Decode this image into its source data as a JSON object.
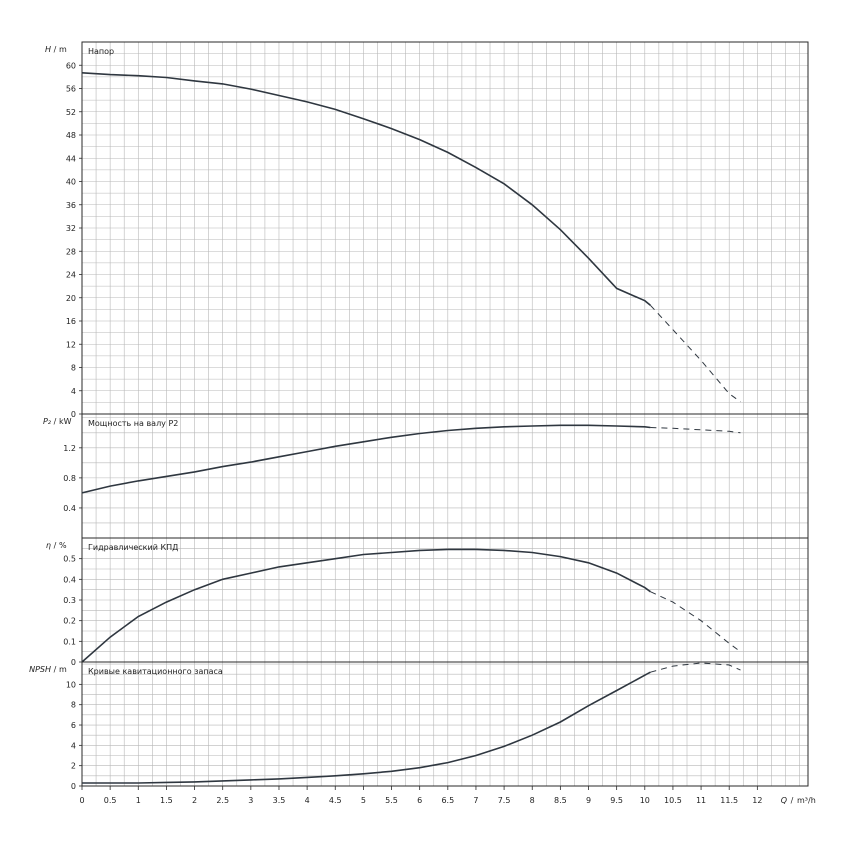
{
  "chart_data": {
    "type": "line",
    "x_axis": {
      "quantity": "Q",
      "unit": "m³/h",
      "xlim": [
        0,
        12.9
      ],
      "ticks": [
        "0",
        "0.5",
        "1",
        "1.5",
        "2",
        "2.5",
        "3",
        "3.5",
        "4",
        "4.5",
        "5",
        "5.5",
        "6",
        "6.5",
        "7",
        "7.5",
        "8",
        "8.5",
        "9",
        "9.5",
        "10",
        "10.5",
        "11",
        "11.5",
        "12"
      ]
    },
    "grid": true,
    "panels": [
      {
        "id": "head",
        "quantity": "H",
        "unit": "m",
        "title": "Напор",
        "ylim": [
          0,
          64
        ],
        "yticks": [
          "0",
          "4",
          "8",
          "12",
          "16",
          "20",
          "24",
          "28",
          "32",
          "36",
          "40",
          "44",
          "48",
          "52",
          "56",
          "60"
        ],
        "series": {
          "x": [
            0,
            0.5,
            1,
            1.5,
            2,
            2.5,
            3,
            3.5,
            4,
            4.5,
            5,
            5.5,
            6,
            6.5,
            7,
            7.5,
            8,
            8.5,
            9,
            9.5,
            10,
            10.1,
            10.5,
            11,
            11.5,
            11.7
          ],
          "y": [
            58.7,
            58.4,
            58.2,
            57.9,
            57.3,
            56.8,
            55.9,
            54.8,
            53.7,
            52.4,
            50.8,
            49.1,
            47.2,
            45.0,
            42.4,
            39.6,
            36.0,
            31.7,
            26.8,
            21.6,
            19.5,
            18.7,
            14.5,
            9.2,
            3.5,
            2.1
          ],
          "solid_until_x": 10.1
        }
      },
      {
        "id": "power",
        "quantity": "P₂",
        "unit": "kW",
        "title": "Мощность на валу P2",
        "ylim": [
          0,
          1.65
        ],
        "yticks": [
          "0.4",
          "0.8",
          "1.2"
        ],
        "series": {
          "x": [
            0,
            0.5,
            1,
            1.5,
            2,
            2.5,
            3,
            3.5,
            4,
            4.5,
            5,
            5.5,
            6,
            6.5,
            7,
            7.5,
            8,
            8.5,
            9,
            9.5,
            10,
            10.1,
            10.5,
            11,
            11.5,
            11.7
          ],
          "y": [
            0.6,
            0.69,
            0.76,
            0.82,
            0.88,
            0.95,
            1.01,
            1.08,
            1.15,
            1.22,
            1.28,
            1.34,
            1.39,
            1.43,
            1.46,
            1.48,
            1.49,
            1.5,
            1.5,
            1.49,
            1.48,
            1.47,
            1.46,
            1.44,
            1.42,
            1.4
          ],
          "solid_until_x": 10.1
        }
      },
      {
        "id": "efficiency",
        "quantity": "η",
        "unit": "%",
        "title": "Гидравлический КПД",
        "ylim": [
          0,
          0.6
        ],
        "yticks": [
          "0",
          "0.1",
          "0.2",
          "0.3",
          "0.4",
          "0.5"
        ],
        "series": {
          "x": [
            0,
            0.5,
            1,
            1.5,
            2,
            2.5,
            3,
            3.5,
            4,
            4.5,
            5,
            5.5,
            6,
            6.5,
            7,
            7.5,
            8,
            8.5,
            9,
            9.5,
            10,
            10.1,
            10.5,
            11,
            11.5,
            11.7
          ],
          "y": [
            0.0,
            0.12,
            0.22,
            0.29,
            0.35,
            0.4,
            0.43,
            0.46,
            0.48,
            0.5,
            0.52,
            0.53,
            0.54,
            0.545,
            0.545,
            0.54,
            0.53,
            0.51,
            0.48,
            0.43,
            0.36,
            0.34,
            0.29,
            0.2,
            0.09,
            0.05
          ],
          "solid_until_x": 10.1
        }
      },
      {
        "id": "npsh",
        "quantity": "NPSH",
        "unit": "m",
        "title": "Кривые кавитационного запаса",
        "ylim": [
          0,
          12.2
        ],
        "yticks": [
          "0",
          "2",
          "4",
          "6",
          "8",
          "10"
        ],
        "series": {
          "x": [
            0,
            0.5,
            1,
            1.5,
            2,
            2.5,
            3,
            3.5,
            4,
            4.5,
            5,
            5.5,
            6,
            6.5,
            7,
            7.5,
            8,
            8.5,
            9,
            9.5,
            10,
            10.1,
            10.5,
            11,
            11.5,
            11.7
          ],
          "y": [
            0.3,
            0.3,
            0.3,
            0.35,
            0.4,
            0.5,
            0.6,
            0.7,
            0.85,
            1.0,
            1.2,
            1.45,
            1.8,
            2.3,
            3.0,
            3.9,
            5.0,
            6.3,
            7.9,
            9.4,
            10.9,
            11.2,
            11.8,
            12.1,
            11.9,
            11.4
          ],
          "solid_until_x": 10.1
        }
      }
    ]
  }
}
